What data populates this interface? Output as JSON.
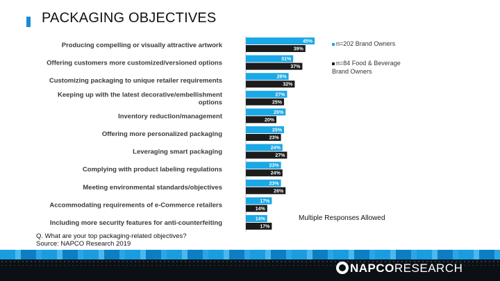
{
  "title": "PACKAGING OBJECTIVES",
  "legend": {
    "series1": "n=202 Brand Owners",
    "series2": "n=84  Food & Beverage Brand Owners"
  },
  "note": "Multiple  Responses Allowed",
  "footnote": {
    "question": "Q. What are your top packaging-related objectives?",
    "source": "Source: NAPCO Research 2019"
  },
  "logo": {
    "part1": "NAPCO",
    "part2": "RESEARCH"
  },
  "colors": {
    "series1": "#1ba8e6",
    "series2": "#1c1c1c",
    "band": "#0b1014"
  },
  "chart_data": {
    "type": "bar",
    "orientation": "horizontal",
    "categories": [
      [
        "Producing compelling or visually attractive artwork"
      ],
      [
        "Offering customers more customized/versioned options"
      ],
      [
        "Customizing packaging to unique retailer requirements"
      ],
      [
        "Keeping up with the latest decorative/embellishment",
        "options"
      ],
      [
        "Inventory reduction/management"
      ],
      [
        "Offering more personalized packaging"
      ],
      [
        "Leveraging smart packaging"
      ],
      [
        "Complying with product labeling regulations"
      ],
      [
        "Meeting environmental standards/objectives"
      ],
      [
        "Accommodating requirements of e-Commerce retailers"
      ],
      [
        "Including more security features for anti-counterfeiting"
      ]
    ],
    "series": [
      {
        "name": "n=202 Brand Owners",
        "values": [
          45,
          31,
          28,
          27,
          26,
          25,
          24,
          23,
          23,
          17,
          14
        ]
      },
      {
        "name": "n=84  Food & Beverage Brand Owners",
        "values": [
          39,
          37,
          32,
          25,
          20,
          23,
          27,
          24,
          26,
          14,
          17
        ]
      }
    ],
    "value_format": "percent"
  }
}
